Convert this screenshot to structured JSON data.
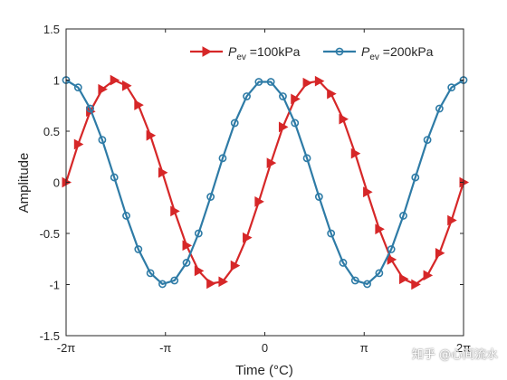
{
  "chart_data": {
    "type": "line",
    "xlabel": "Time (°C)",
    "ylabel": "Amplitude",
    "xlim": [
      -6.283185307179586,
      6.283185307179586
    ],
    "ylim": [
      -1.5,
      1.5
    ],
    "xticks": [
      {
        "value": -6.283185307179586,
        "label": "-2π"
      },
      {
        "value": -3.141592653589793,
        "label": "-π"
      },
      {
        "value": 0,
        "label": "0"
      },
      {
        "value": 3.141592653589793,
        "label": "π"
      },
      {
        "value": 6.283185307179586,
        "label": "2π"
      }
    ],
    "yticks": [
      {
        "value": -1.5,
        "label": "-1.5"
      },
      {
        "value": -1,
        "label": "-1"
      },
      {
        "value": -0.5,
        "label": "-0.5"
      },
      {
        "value": 0,
        "label": "0"
      },
      {
        "value": 0.5,
        "label": "0.5"
      },
      {
        "value": 1,
        "label": "1"
      },
      {
        "value": 1.5,
        "label": "1.5"
      }
    ],
    "grid": false,
    "legend_position": "top-right",
    "series": [
      {
        "name_main": "P",
        "name_sub": "ev",
        "name_rest": " =100kPa",
        "color": "#D62728",
        "marker": "triangle-right",
        "x": [
          -6.2832,
          -5.9024,
          -5.5216,
          -5.1408,
          -4.76,
          -4.3792,
          -3.9984,
          -3.6176,
          -3.2368,
          -2.856,
          -2.4752,
          -2.0944,
          -1.7136,
          -1.3328,
          -0.952,
          -0.5712,
          -0.1904,
          0.1904,
          0.5712,
          0.952,
          1.3328,
          1.7136,
          2.0944,
          2.4752,
          2.856,
          3.2368,
          3.6176,
          3.9984,
          4.3792,
          4.76,
          5.1408,
          5.5216,
          5.9024,
          6.2832
        ],
        "y": [
          0.0,
          0.372,
          0.693,
          0.91,
          0.999,
          0.945,
          0.756,
          0.458,
          0.095,
          -0.282,
          -0.618,
          -0.866,
          -0.99,
          -0.972,
          -0.815,
          -0.541,
          -0.189,
          0.189,
          0.541,
          0.815,
          0.972,
          0.99,
          0.866,
          0.618,
          0.282,
          -0.095,
          -0.458,
          -0.756,
          -0.945,
          -0.999,
          -0.91,
          -0.693,
          -0.372,
          0.0
        ]
      },
      {
        "name_main": "P",
        "name_sub": "ev",
        "name_rest": " =200kPa",
        "color": "#2E7BA6",
        "marker": "circle",
        "x": [
          -6.2832,
          -5.9024,
          -5.5216,
          -5.1408,
          -4.76,
          -4.3792,
          -3.9984,
          -3.6176,
          -3.2368,
          -2.856,
          -2.4752,
          -2.0944,
          -1.7136,
          -1.3328,
          -0.952,
          -0.5712,
          -0.1904,
          0.1904,
          0.5712,
          0.952,
          1.3328,
          1.7136,
          2.0944,
          2.4752,
          2.856,
          3.2368,
          3.6176,
          3.9984,
          4.3792,
          4.76,
          5.1408,
          5.5216,
          5.9024,
          6.2832
        ],
        "y": [
          1.0,
          0.928,
          0.721,
          0.415,
          0.048,
          -0.327,
          -0.655,
          -0.888,
          -0.995,
          -0.96,
          -0.787,
          -0.5,
          -0.142,
          0.236,
          0.58,
          0.841,
          0.982,
          0.982,
          0.841,
          0.58,
          0.236,
          -0.142,
          -0.5,
          -0.787,
          -0.96,
          -0.995,
          -0.888,
          -0.655,
          -0.327,
          0.048,
          0.415,
          0.721,
          0.928,
          1.0
        ]
      }
    ]
  },
  "watermark": "知乎 @心间流水"
}
